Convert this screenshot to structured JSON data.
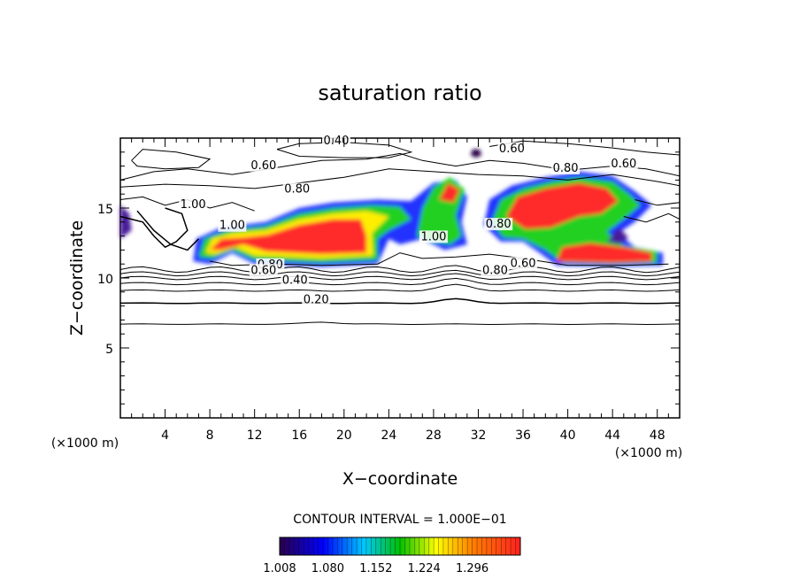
{
  "chart_data": {
    "type": "heatmap",
    "title": "saturation ratio",
    "xlabel": "X−coordinate",
    "ylabel": "Z−coordinate",
    "x_unit": "(×1000 m)",
    "z_unit": "(×1000 m)",
    "xlim": [
      0,
      50
    ],
    "zlim": [
      0,
      20
    ],
    "xticks": [
      4,
      8,
      12,
      16,
      20,
      24,
      28,
      32,
      36,
      40,
      44,
      48
    ],
    "zticks": [
      5,
      10,
      15
    ],
    "grid": false,
    "contour_interval_text": "CONTOUR INTERVAL = 1.000E−01",
    "contour_labels": [
      "0.40",
      "0.60",
      "0.80",
      "0.60",
      "0.80",
      "1.00",
      "0.80",
      "0.60",
      "0.40",
      "0.20",
      "1.00",
      "1.00",
      "0.80",
      "0.60",
      "0.80",
      "0.60"
    ],
    "colorbar": {
      "min": 1.008,
      "max": 1.368,
      "tick_labels": [
        "1.008",
        "1.080",
        "1.152",
        "1.224",
        "1.296"
      ]
    },
    "colors": {
      "low": "#2a004a",
      "mid_low": "#0000ff",
      "mid": "#00c000",
      "mid_high": "#ffff00",
      "high": "#ff2020"
    }
  }
}
